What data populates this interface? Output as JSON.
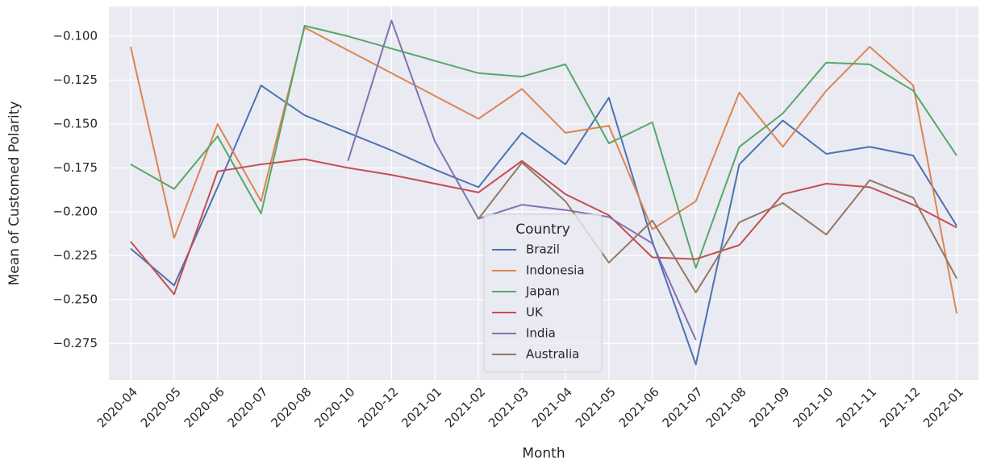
{
  "chart_data": {
    "type": "line",
    "x_label": "Month",
    "y_label": "Mean of Customed Polarity",
    "legend_title": "Country",
    "legend": "lower center",
    "grid": true,
    "categories": [
      "2020-04",
      "2020-05",
      "2020-06",
      "2020-07",
      "2020-08",
      "2020-10",
      "2020-12",
      "2021-01",
      "2021-02",
      "2021-03",
      "2021-04",
      "2021-05",
      "2021-06",
      "2021-07",
      "2021-08",
      "2021-09",
      "2021-10",
      "2021-11",
      "2021-12",
      "2022-01"
    ],
    "ylim": [
      -0.296,
      -0.083
    ],
    "yticks": [
      {
        "value": -0.1,
        "label": "−0.100"
      },
      {
        "value": -0.125,
        "label": "−0.125"
      },
      {
        "value": -0.15,
        "label": "−0.150"
      },
      {
        "value": -0.175,
        "label": "−0.175"
      },
      {
        "value": -0.2,
        "label": "−0.200"
      },
      {
        "value": -0.225,
        "label": "−0.225"
      },
      {
        "value": -0.25,
        "label": "−0.250"
      },
      {
        "value": -0.275,
        "label": "−0.275"
      }
    ],
    "series": [
      {
        "name": "Brazil",
        "color": "#4c72b0",
        "values": [
          -0.221,
          -0.242,
          -0.186,
          -0.128,
          -0.145,
          -0.155,
          -0.165,
          -0.176,
          -0.186,
          -0.155,
          -0.173,
          -0.135,
          -0.217,
          -0.287,
          -0.173,
          -0.148,
          -0.167,
          -0.163,
          -0.168,
          -0.208
        ]
      },
      {
        "name": "Indonesia",
        "color": "#dd8452",
        "values": [
          -0.106,
          -0.215,
          -0.15,
          -0.194,
          -0.095,
          -0.108,
          -0.121,
          -0.134,
          -0.147,
          -0.13,
          -0.155,
          -0.151,
          -0.21,
          -0.194,
          -0.132,
          -0.163,
          -0.131,
          -0.106,
          -0.128,
          -0.258
        ]
      },
      {
        "name": "Japan",
        "color": "#55a868",
        "values": [
          -0.173,
          -0.187,
          -0.157,
          -0.201,
          -0.094,
          -0.1,
          -0.107,
          -0.114,
          -0.121,
          -0.123,
          -0.116,
          -0.161,
          -0.149,
          -0.232,
          -0.163,
          -0.144,
          -0.115,
          -0.116,
          -0.131,
          -0.168
        ]
      },
      {
        "name": "UK",
        "color": "#c44e52",
        "values": [
          -0.217,
          -0.247,
          -0.177,
          -0.173,
          -0.17,
          -0.175,
          -0.179,
          -0.184,
          -0.189,
          -0.171,
          -0.19,
          -0.202,
          -0.226,
          -0.227,
          -0.219,
          -0.19,
          -0.184,
          -0.186,
          -0.196,
          -0.209
        ]
      },
      {
        "name": "India",
        "color": "#8172b3",
        "values": [
          null,
          null,
          null,
          null,
          null,
          -0.171,
          -0.091,
          -0.16,
          -0.204,
          -0.196,
          -0.199,
          -0.203,
          -0.218,
          -0.273,
          null,
          null,
          null,
          null,
          null,
          null
        ]
      },
      {
        "name": "Australia",
        "color": "#937860",
        "values": [
          null,
          null,
          null,
          null,
          null,
          null,
          null,
          null,
          -0.204,
          -0.172,
          -0.194,
          -0.229,
          -0.205,
          -0.246,
          -0.206,
          -0.195,
          -0.213,
          -0.182,
          -0.192,
          -0.238
        ]
      }
    ]
  }
}
